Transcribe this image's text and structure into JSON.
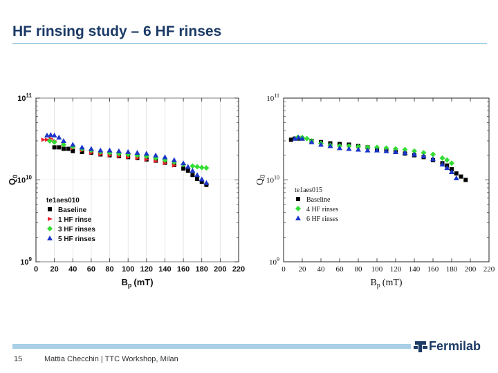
{
  "slide": {
    "title": "HF rinsing study – 6 HF rinses",
    "page_number": "15",
    "footer_text": "Mattia Checchin | TTC Workshop, Milan",
    "logo_text": "Fermilab",
    "logo_icon": "fermilab-logo-icon",
    "colors": {
      "title": "#1b3a66",
      "rule": "#a9cfe6"
    }
  },
  "chart_data": [
    {
      "type": "scatter",
      "title": "",
      "xlabel": "B",
      "xlabel_sub": "p",
      "xlabel_unit": "(mT)",
      "ylabel": "Q",
      "ylabel_sub": "0",
      "xlim": [
        0,
        220
      ],
      "ylim": [
        1000000000.0,
        100000000000.0
      ],
      "yscale": "log",
      "xticks": [
        0,
        20,
        40,
        60,
        80,
        100,
        120,
        140,
        160,
        180,
        200,
        220
      ],
      "yticks": [
        {
          "value": 1000000000.0,
          "base": "10",
          "exp": "9"
        },
        {
          "value": 10000000000.0,
          "base": "10",
          "exp": "10"
        },
        {
          "value": 100000000000.0,
          "base": "10",
          "exp": "11"
        }
      ],
      "legend_title": "te1aes010",
      "legend_position": "lower-left",
      "series": [
        {
          "name": "Baseline",
          "marker": "square",
          "color": "#000000",
          "x": [
            20,
            25,
            30,
            35,
            40,
            50,
            60,
            70,
            80,
            90,
            100,
            110,
            120,
            130,
            140,
            150,
            160,
            165,
            170,
            175,
            180,
            185
          ],
          "y": [
            25000000000.0,
            25000000000.0,
            24000000000.0,
            24000000000.0,
            22500000000.0,
            22000000000.0,
            21500000000.0,
            20500000000.0,
            20000000000.0,
            19500000000.0,
            19000000000.0,
            18500000000.0,
            17800000000.0,
            17200000000.0,
            16200000000.0,
            15200000000.0,
            13800000000.0,
            13000000000.0,
            11500000000.0,
            10300000000.0,
            9500000000.0,
            8700000000.0
          ]
        },
        {
          "name": "1 HF rinse",
          "marker": "triangle-right",
          "color": "#e8202a",
          "x": [
            8,
            12,
            16,
            20,
            30,
            40,
            50,
            60,
            70,
            80,
            90,
            100,
            110,
            120,
            130,
            140,
            150
          ],
          "y": [
            31000000000.0,
            31000000000.0,
            32000000000.0,
            30000000000.0,
            27000000000.0,
            24500000000.0,
            23000000000.0,
            21500000000.0,
            20500000000.0,
            20000000000.0,
            19500000000.0,
            19000000000.0,
            18500000000.0,
            17800000000.0,
            17000000000.0,
            16000000000.0,
            15000000000.0
          ]
        },
        {
          "name": "3 HF rinses",
          "marker": "diamond",
          "color": "#33dd33",
          "x": [
            15,
            20,
            30,
            40,
            50,
            60,
            70,
            80,
            90,
            100,
            110,
            120,
            130,
            140,
            150,
            160,
            170,
            175,
            180,
            185
          ],
          "y": [
            30000000000.0,
            29000000000.0,
            27000000000.0,
            25500000000.0,
            24000000000.0,
            23000000000.0,
            22000000000.0,
            21500000000.0,
            21000000000.0,
            20500000000.0,
            20000000000.0,
            19500000000.0,
            18500000000.0,
            17500000000.0,
            16500000000.0,
            15500000000.0,
            14800000000.0,
            14500000000.0,
            14200000000.0,
            14000000000.0
          ]
        },
        {
          "name": "5 HF rinses",
          "marker": "triangle-up",
          "color": "#1a35c8",
          "x": [
            12,
            16,
            20,
            25,
            30,
            40,
            50,
            60,
            70,
            80,
            90,
            100,
            110,
            120,
            130,
            140,
            150,
            160,
            165,
            170,
            175,
            180,
            185
          ],
          "y": [
            35000000000.0,
            35500000000.0,
            35000000000.0,
            33000000000.0,
            30000000000.0,
            27000000000.0,
            25000000000.0,
            24000000000.0,
            23000000000.0,
            23000000000.0,
            22500000000.0,
            22000000000.0,
            21500000000.0,
            21000000000.0,
            20000000000.0,
            19000000000.0,
            17500000000.0,
            16000000000.0,
            14500000000.0,
            13000000000.0,
            11500000000.0,
            10200000000.0,
            9200000000.0
          ]
        }
      ]
    },
    {
      "type": "scatter",
      "title": "",
      "xlabel": "B",
      "xlabel_sub": "p",
      "xlabel_unit": "(mT)",
      "ylabel": "Q",
      "ylabel_sub": "0",
      "xlim": [
        0,
        220
      ],
      "ylim": [
        1000000000.0,
        100000000000.0
      ],
      "yscale": "log",
      "xticks": [
        0,
        20,
        40,
        60,
        80,
        100,
        120,
        140,
        160,
        180,
        200,
        220
      ],
      "yticks": [
        {
          "value": 1000000000.0,
          "base": "10",
          "exp": "9"
        },
        {
          "value": 10000000000.0,
          "base": "10",
          "exp": "10"
        },
        {
          "value": 100000000000.0,
          "base": "10",
          "exp": "11"
        }
      ],
      "legend_title": "te1aes015",
      "legend_position": "lower-left",
      "series": [
        {
          "name": "Baseline",
          "marker": "square",
          "color": "#000000",
          "x": [
            8,
            12,
            16,
            20,
            30,
            40,
            50,
            60,
            70,
            80,
            90,
            100,
            110,
            120,
            130,
            140,
            150,
            160,
            170,
            175,
            180,
            185,
            190,
            195
          ],
          "y": [
            31000000000.0,
            32000000000.0,
            32000000000.0,
            32000000000.0,
            30000000000.0,
            29000000000.0,
            28000000000.0,
            27500000000.0,
            27000000000.0,
            26000000000.0,
            25000000000.0,
            24000000000.0,
            23000000000.0,
            22000000000.0,
            21000000000.0,
            20000000000.0,
            19000000000.0,
            17500000000.0,
            16000000000.0,
            15000000000.0,
            13500000000.0,
            12000000000.0,
            11000000000.0,
            10000000000.0
          ]
        },
        {
          "name": "4 HF rinses",
          "marker": "diamond",
          "color": "#33dd33",
          "x": [
            15,
            20,
            25,
            30,
            40,
            50,
            60,
            70,
            80,
            90,
            100,
            110,
            120,
            130,
            140,
            150,
            160,
            170,
            175,
            180
          ],
          "y": [
            33000000000.0,
            33000000000.0,
            32000000000.0,
            30000000000.0,
            28000000000.0,
            26500000000.0,
            26000000000.0,
            26000000000.0,
            25500000000.0,
            25000000000.0,
            25000000000.0,
            24500000000.0,
            24000000000.0,
            23500000000.0,
            22500000000.0,
            21500000000.0,
            20500000000.0,
            18500000000.0,
            17500000000.0,
            16000000000.0
          ]
        },
        {
          "name": "6 HF rinses",
          "marker": "triangle-up",
          "color": "#1a35c8",
          "x": [
            12,
            16,
            20,
            30,
            40,
            50,
            60,
            70,
            80,
            90,
            100,
            110,
            120,
            130,
            140,
            150,
            160,
            170,
            175,
            180,
            185
          ],
          "y": [
            32000000000.0,
            33000000000.0,
            32000000000.0,
            29000000000.0,
            27000000000.0,
            26000000000.0,
            24500000000.0,
            24000000000.0,
            23500000000.0,
            23000000000.0,
            23000000000.0,
            22500000000.0,
            22000000000.0,
            21500000000.0,
            20500000000.0,
            19500000000.0,
            18000000000.0,
            15500000000.0,
            14000000000.0,
            12500000000.0,
            10500000000.0
          ]
        }
      ]
    }
  ]
}
